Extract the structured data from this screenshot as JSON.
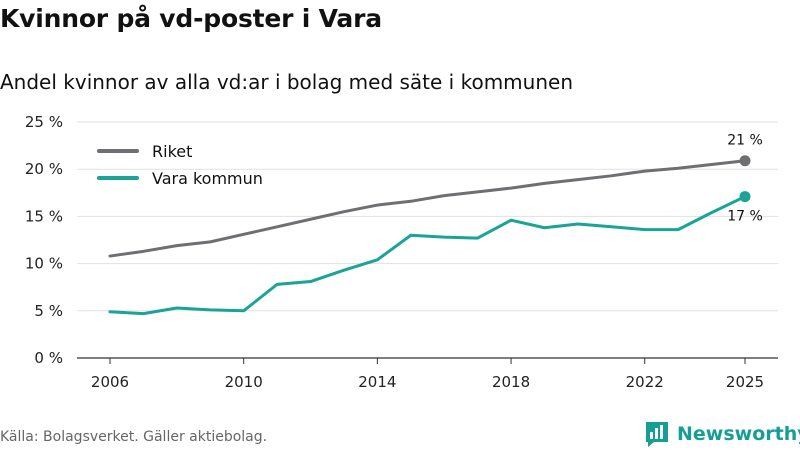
{
  "title": "Kvinnor på vd-poster i Vara",
  "subtitle": "Andel kvinnor av alla vd:ar i bolag med säte i kommunen",
  "source": "Källa: Bolagsverket. Gäller aktiebolag.",
  "brand": "Newsworthy",
  "chart_data": {
    "type": "line",
    "x": [
      2006,
      2007,
      2008,
      2009,
      2010,
      2011,
      2012,
      2013,
      2014,
      2015,
      2016,
      2017,
      2018,
      2019,
      2020,
      2021,
      2022,
      2023,
      2024,
      2025
    ],
    "series": [
      {
        "name": "Riket",
        "color": "#6f6f73",
        "values": [
          10.8,
          11.3,
          11.9,
          12.3,
          13.1,
          13.9,
          14.7,
          15.5,
          16.2,
          16.6,
          17.2,
          17.6,
          18.0,
          18.5,
          18.9,
          19.3,
          19.8,
          20.1,
          20.5,
          20.9
        ],
        "end_label": "21 %"
      },
      {
        "name": "Vara kommun",
        "color": "#1aa396",
        "values": [
          4.9,
          4.7,
          5.3,
          5.1,
          5.0,
          7.8,
          8.1,
          9.3,
          10.4,
          13.0,
          12.8,
          12.7,
          14.6,
          13.8,
          14.2,
          13.9,
          13.6,
          13.6,
          15.4,
          17.1
        ],
        "end_label": "17 %"
      }
    ],
    "x_ticks": [
      "2006",
      "2010",
      "2014",
      "2018",
      "2022",
      "2025"
    ],
    "y_ticks": [
      "0 %",
      "5 %",
      "10 %",
      "15 %",
      "20 %",
      "25 %"
    ],
    "ylim": [
      0,
      25
    ],
    "grid": true,
    "legend": "top-left"
  }
}
